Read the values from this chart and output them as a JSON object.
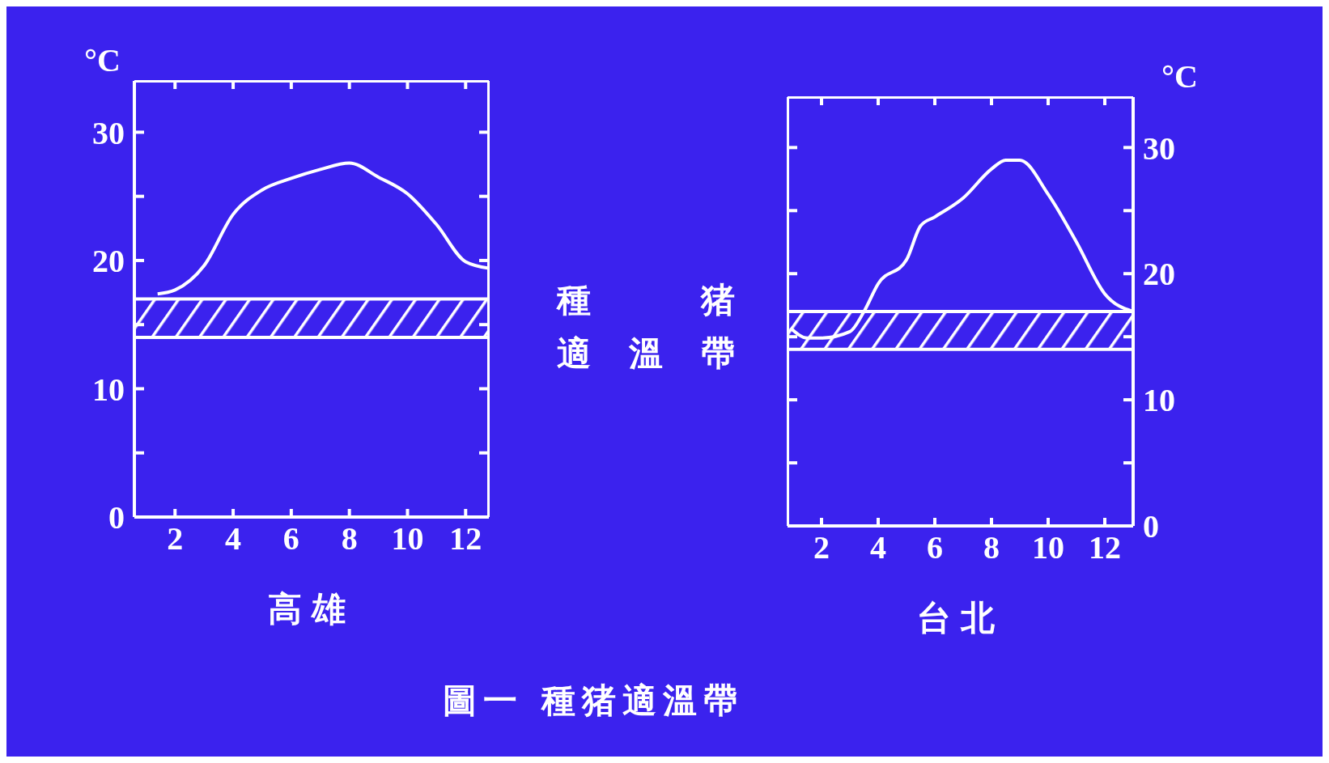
{
  "chart_data": [
    {
      "type": "line",
      "xlabel": "高雄",
      "ylabel": "°C",
      "x": [
        1.4,
        2,
        3,
        4,
        5,
        6,
        7,
        8,
        9,
        10,
        11,
        12,
        12.8
      ],
      "series": [
        {
          "color": "#ffffff",
          "values": [
            17.4,
            17.7,
            19.6,
            23.6,
            25.5,
            26.4,
            27.1,
            27.6,
            26.5,
            25.2,
            22.8,
            19.9,
            19.4
          ]
        }
      ],
      "xlim": [
        0.6,
        12.8
      ],
      "ylim": [
        0,
        34
      ],
      "xticks": [
        2,
        4,
        6,
        8,
        10,
        12
      ],
      "yticks": [
        0,
        {
          "value": 5,
          "label": null
        },
        10,
        {
          "value": 15,
          "label": null
        },
        20,
        {
          "value": 25,
          "label": null
        },
        30
      ],
      "bands": [
        {
          "axis": "y",
          "from": 14,
          "to": 17,
          "label": "種猪適溫帶",
          "color": "#ffffff"
        }
      ],
      "annotations": [
        "圖一 種猪適溫帶"
      ]
    },
    {
      "type": "line",
      "xlabel": "台北",
      "ylabel": "°C",
      "x": [
        0.9,
        1.5,
        2,
        3,
        3.5,
        4,
        5,
        5.5,
        6,
        7,
        8,
        8.5,
        9,
        10,
        11,
        12,
        13
      ],
      "series": [
        {
          "color": "#ffffff",
          "values": [
            15.7,
            14.9,
            14.9,
            15.4,
            17,
            19.2,
            21.1,
            23.8,
            24.5,
            26,
            28.3,
            29,
            29,
            26.3,
            22.5,
            18.4,
            17
          ]
        }
      ],
      "xlim": [
        0.8,
        13
      ],
      "ylim": [
        0,
        34
      ],
      "xticks": [
        2,
        4,
        6,
        8,
        10,
        12
      ],
      "yticks": [
        0,
        {
          "value": 5,
          "label": null
        },
        10,
        {
          "value": 15,
          "label": null
        },
        20,
        {
          "value": 25,
          "label": null
        },
        30
      ],
      "bands": [
        {
          "axis": "y",
          "from": 14,
          "to": 17,
          "color": "#ffffff"
        }
      ]
    }
  ]
}
